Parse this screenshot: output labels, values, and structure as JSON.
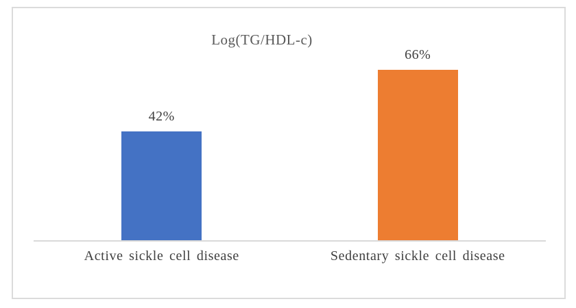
{
  "chart_data": {
    "type": "bar",
    "title": "Log(TG/HDL-c)",
    "categories": [
      "Active sickle cell disease",
      "Sedentary sickle cell disease"
    ],
    "values": [
      42,
      66
    ],
    "value_labels": [
      "42%",
      "66%"
    ],
    "series_colors": [
      "#4472C4",
      "#ED7D31"
    ],
    "ylim": [
      0,
      100
    ],
    "grid": false,
    "legend": false,
    "axis_line_color": "#D9D9D9",
    "frame_border_color": "#DBDBDB",
    "title_color": "#595959",
    "label_color": "#404040",
    "background_color": "#FFFFFF"
  }
}
